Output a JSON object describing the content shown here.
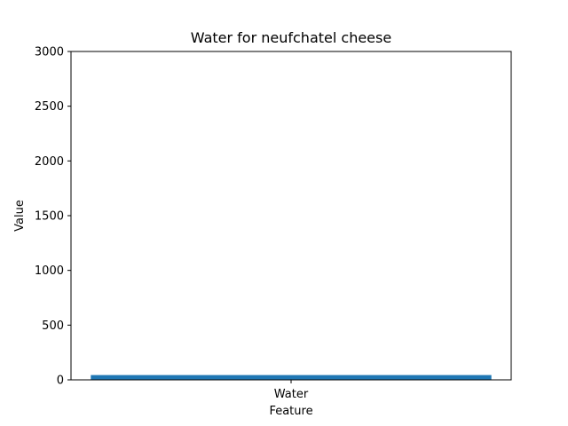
{
  "chart_data": {
    "type": "bar",
    "title": "Water for neufchatel cheese",
    "xlabel": "Feature",
    "ylabel": "Value",
    "categories": [
      "Water"
    ],
    "values": [
      43.7
    ],
    "ylim": [
      0,
      3000
    ],
    "yticks": [
      "0",
      "500",
      "1000",
      "1500",
      "2000",
      "2500",
      "3000"
    ],
    "bar_color": "#1f77b4",
    "grid": false
  }
}
